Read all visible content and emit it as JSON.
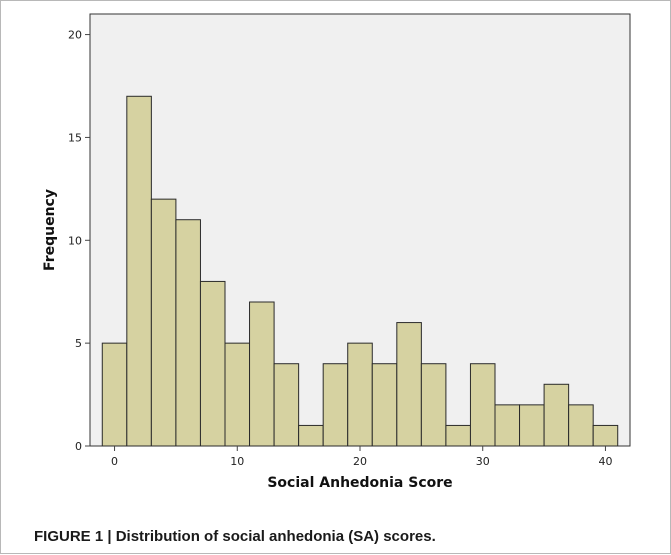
{
  "figure": {
    "caption": "FIGURE 1 | Distribution of social anhedonia (SA) scores."
  },
  "chart_data": {
    "type": "bar",
    "title": "",
    "xlabel": "Social Anhedonia Score",
    "ylabel": "Frequency",
    "bin_width": 2,
    "x": [
      0,
      2,
      4,
      6,
      8,
      10,
      12,
      14,
      16,
      18,
      20,
      22,
      24,
      26,
      28,
      30,
      32,
      34,
      36,
      38,
      40
    ],
    "values": [
      5,
      17,
      12,
      11,
      8,
      5,
      7,
      4,
      1,
      4,
      5,
      4,
      6,
      4,
      1,
      4,
      2,
      2,
      3,
      2,
      1
    ],
    "xlim": [
      -2,
      42
    ],
    "ylim": [
      0,
      21
    ],
    "xticks": [
      0,
      10,
      20,
      30,
      40
    ],
    "yticks": [
      0,
      5,
      10,
      15,
      20
    ],
    "grid": false,
    "colors": {
      "bar_fill": "#d6d2a1",
      "bar_stroke": "#2a2a2a",
      "plot_background": "#f0f0f0",
      "axis": "#444444"
    }
  }
}
